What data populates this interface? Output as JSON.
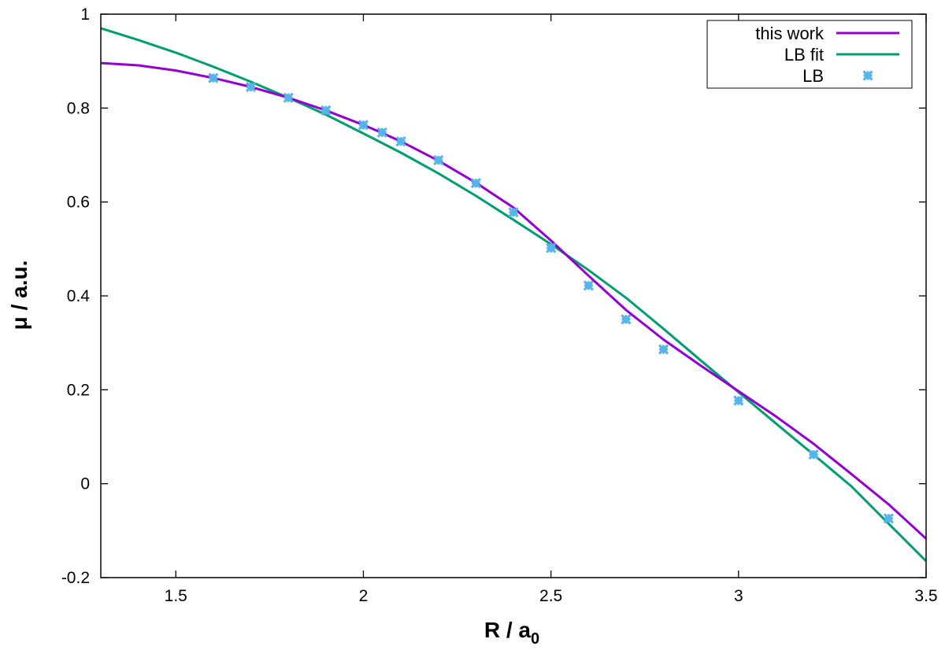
{
  "chart_data": {
    "type": "line",
    "xlabel_main": "R / a",
    "xlabel_sub": "0",
    "ylabel": "μ / a.u.",
    "xlim": [
      1.3,
      3.5
    ],
    "ylim": [
      -0.2,
      1.0
    ],
    "xticks": [
      1.5,
      2,
      2.5,
      3,
      3.5
    ],
    "xtick_labels": [
      "1.5",
      "2",
      "2.5",
      "3",
      "3.5"
    ],
    "yticks": [
      -0.2,
      0,
      0.2,
      0.4,
      0.6,
      0.8,
      1.0
    ],
    "ytick_labels": [
      "-0.2",
      "0",
      "0.2",
      "0.4",
      "0.6",
      "0.8",
      "1"
    ],
    "grid": false,
    "legend_position": "top-right",
    "series": [
      {
        "name": "this work",
        "kind": "line",
        "color": "#9400d3",
        "x": [
          1.3,
          1.4,
          1.5,
          1.6,
          1.7,
          1.8,
          1.9,
          2.0,
          2.05,
          2.1,
          2.2,
          2.3,
          2.4,
          2.5,
          2.6,
          2.7,
          2.8,
          2.9,
          3.0,
          3.1,
          3.2,
          3.3,
          3.4,
          3.5
        ],
        "y": [
          0.896,
          0.891,
          0.88,
          0.864,
          0.845,
          0.822,
          0.795,
          0.764,
          0.747,
          0.729,
          0.688,
          0.641,
          0.588,
          0.518,
          0.443,
          0.37,
          0.307,
          0.251,
          0.197,
          0.143,
          0.085,
          0.021,
          -0.044,
          -0.117
        ]
      },
      {
        "name": "LB fit",
        "kind": "line",
        "color": "#009e73",
        "x": [
          1.3,
          1.4,
          1.5,
          1.6,
          1.7,
          1.8,
          1.9,
          2.0,
          2.1,
          2.2,
          2.3,
          2.4,
          2.5,
          2.6,
          2.7,
          2.8,
          2.9,
          3.0,
          3.1,
          3.2,
          3.3,
          3.4,
          3.5
        ],
        "y": [
          0.97,
          0.945,
          0.918,
          0.888,
          0.856,
          0.822,
          0.786,
          0.746,
          0.705,
          0.661,
          0.613,
          0.562,
          0.51,
          0.455,
          0.396,
          0.33,
          0.262,
          0.195,
          0.128,
          0.062,
          -0.005,
          -0.085,
          -0.165
        ]
      },
      {
        "name": "LB",
        "kind": "scatter",
        "color": "#56b4e9",
        "x": [
          1.6,
          1.7,
          1.8,
          1.9,
          2.0,
          2.05,
          2.1,
          2.2,
          2.3,
          2.4,
          2.5,
          2.6,
          2.7,
          2.8,
          3.0,
          3.2,
          3.4
        ],
        "y": [
          0.864,
          0.845,
          0.822,
          0.795,
          0.764,
          0.748,
          0.729,
          0.689,
          0.64,
          0.578,
          0.502,
          0.422,
          0.35,
          0.286,
          0.177,
          0.062,
          -0.074
        ]
      }
    ]
  }
}
